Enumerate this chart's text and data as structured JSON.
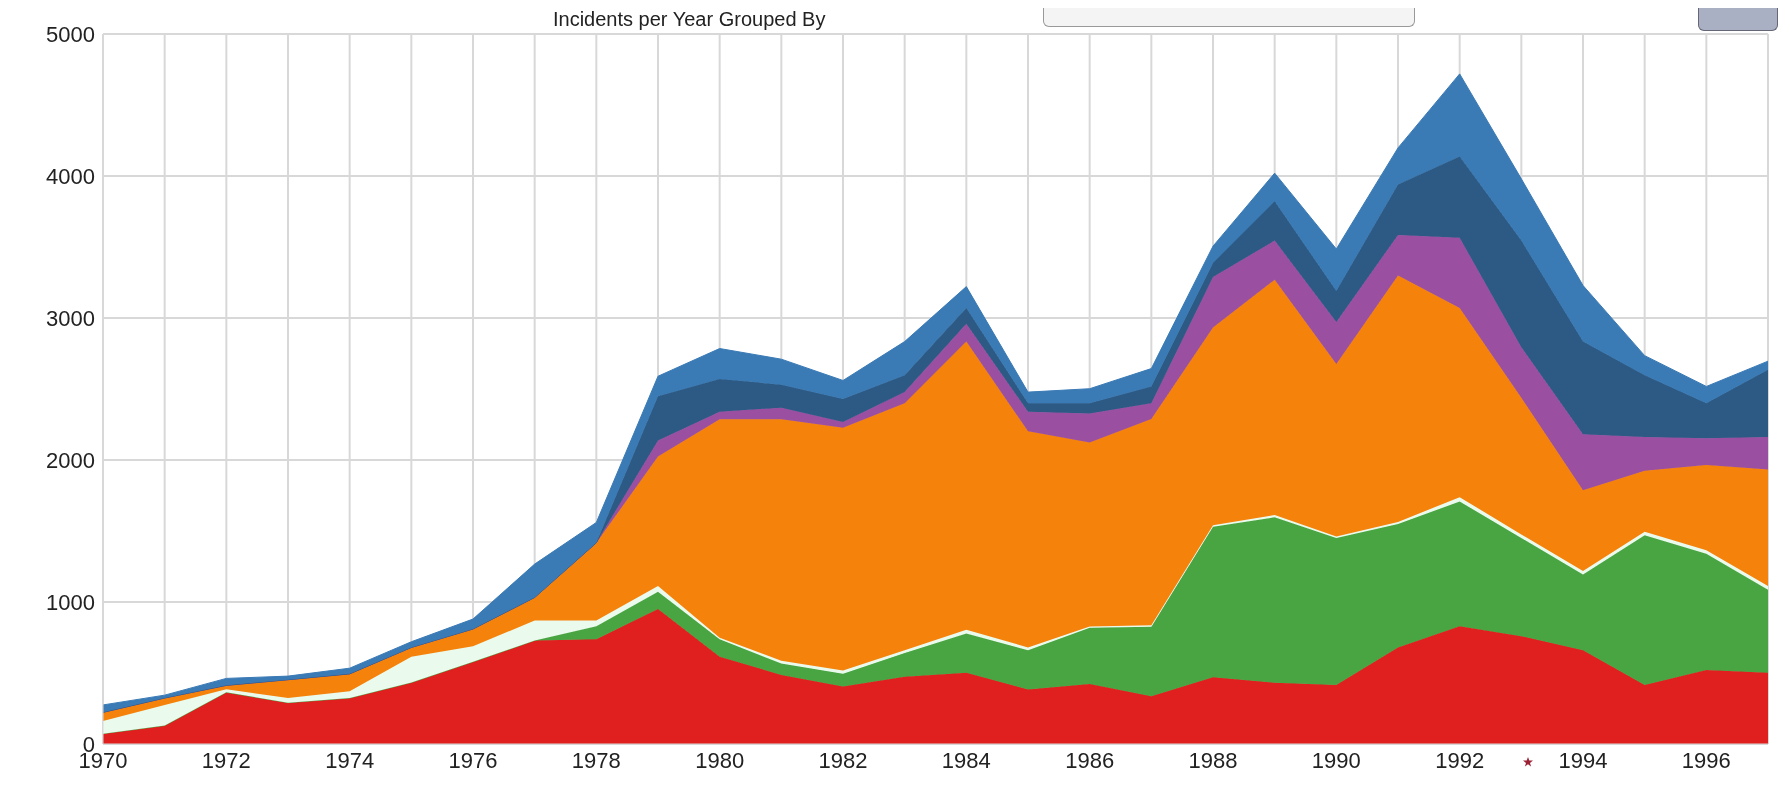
{
  "chart_data": {
    "type": "area",
    "title": "Incidents per Year Grouped By",
    "stacked": true,
    "grid": true,
    "x": [
      1970,
      1971,
      1972,
      1973,
      1974,
      1975,
      1976,
      1977,
      1978,
      1979,
      1980,
      1981,
      1982,
      1983,
      1984,
      1985,
      1986,
      1987,
      1988,
      1989,
      1990,
      1991,
      1992,
      1993,
      1994,
      1995,
      1996,
      1997
    ],
    "xlim": [
      1970,
      1997
    ],
    "xticks": [
      1970,
      {
        "value": 1971,
        "label": null
      },
      1972,
      {
        "value": 1973,
        "label": null
      },
      1974,
      {
        "value": 1975,
        "label": null
      },
      1976,
      {
        "value": 1977,
        "label": null
      },
      1978,
      {
        "value": 1979,
        "label": null
      },
      1980,
      {
        "value": 1981,
        "label": null
      },
      1982,
      {
        "value": 1983,
        "label": null
      },
      1984,
      {
        "value": 1985,
        "label": null
      },
      1986,
      {
        "value": 1987,
        "label": null
      },
      1988,
      {
        "value": 1989,
        "label": null
      },
      1990,
      {
        "value": 1991,
        "label": null
      },
      1992,
      {
        "value": 1993,
        "label": null
      },
      1994,
      {
        "value": 1995,
        "label": null
      },
      1996,
      {
        "value": 1997,
        "label": null
      }
    ],
    "ylim": [
      0,
      5000
    ],
    "yticks": [
      0,
      1000,
      2000,
      3000,
      4000,
      5000
    ],
    "series": [
      {
        "color": "#e0201f",
        "values": [
          73,
          130,
          364,
          291,
          324,
          433,
          579,
          729,
          737,
          951,
          615,
          486,
          405,
          474,
          502,
          383,
          423,
          336,
          470,
          431,
          415,
          680,
          830,
          759,
          660,
          415,
          522,
          502
        ]
      },
      {
        "color": "#49a442",
        "values": [
          0,
          0,
          0,
          0,
          0,
          0,
          0,
          0,
          93,
          122,
          122,
          81,
          89,
          166,
          277,
          277,
          395,
          490,
          1060,
          1166,
          1036,
          869,
          878,
          692,
          534,
          1055,
          818,
          585
        ]
      },
      {
        "color": "#eafbee",
        "values": [
          89,
          145,
          21,
          33,
          48,
          182,
          109,
          141,
          40,
          40,
          12,
          20,
          24,
          20,
          25,
          20,
          10,
          10,
          10,
          15,
          10,
          15,
          30,
          25,
          25,
          25,
          25,
          25
        ]
      },
      {
        "color": "#f5820a",
        "values": [
          61,
          49,
          28,
          129,
          122,
          65,
          122,
          162,
          547,
          911,
          1538,
          1700,
          1709,
          1739,
          2030,
          1522,
          1295,
          1453,
          1393,
          1657,
          1215,
          1736,
          1333,
          963,
          568,
          430,
          599,
          821
        ]
      },
      {
        "color": "#9b4fa0",
        "values": [
          0,
          0,
          0,
          0,
          0,
          0,
          0,
          0,
          0,
          114,
          53,
          81,
          40,
          79,
          126,
          138,
          205,
          110,
          356,
          276,
          296,
          285,
          494,
          355,
          395,
          237,
          190,
          229
        ]
      },
      {
        "color": "#2c5a85",
        "values": [
          0,
          0,
          0,
          0,
          0,
          0,
          0,
          0,
          0,
          311,
          231,
          162,
          162,
          119,
          111,
          59,
          71,
          119,
          98,
          277,
          218,
          356,
          573,
          751,
          652,
          435,
          245,
          474
        ]
      },
      {
        "color": "#3a7ab5",
        "values": [
          52,
          20,
          49,
          25,
          40,
          40,
          70,
          235,
          143,
          141,
          214,
          180,
          131,
          237,
          150,
          79,
          103,
          126,
          119,
          198,
          296,
          257,
          581,
          435,
          395,
          138,
          119,
          60
        ]
      }
    ]
  }
}
